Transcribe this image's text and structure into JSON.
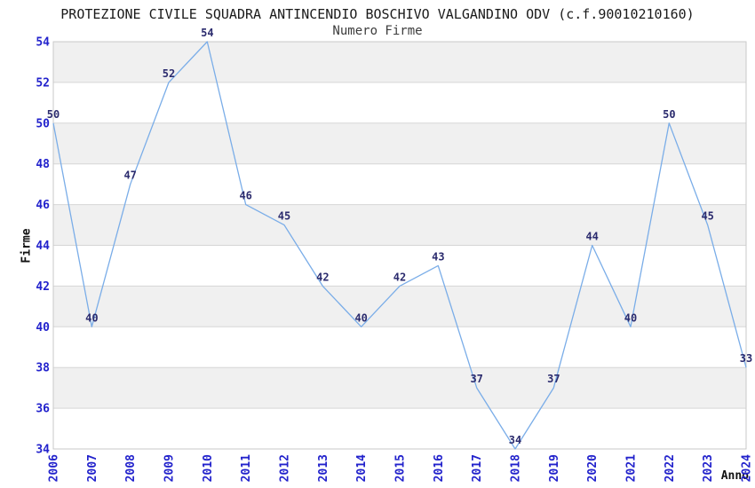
{
  "header": {
    "title": "PROTEZIONE CIVILE SQUADRA ANTINCENDIO BOSCHIVO VALGANDINO ODV (c.f.90010210160)",
    "subtitle": "Numero Firme"
  },
  "chart_data": {
    "type": "line",
    "title": "PROTEZIONE CIVILE SQUADRA ANTINCENDIO BOSCHIVO VALGANDINO ODV (c.f.90010210160)",
    "subtitle": "Numero Firme",
    "xlabel": "Anno",
    "ylabel": "Firme",
    "x": [
      2006,
      2007,
      2008,
      2009,
      2010,
      2011,
      2012,
      2013,
      2014,
      2015,
      2016,
      2017,
      2018,
      2019,
      2020,
      2021,
      2022,
      2023,
      2024
    ],
    "values": [
      50,
      40,
      47,
      52,
      54,
      46,
      45,
      42,
      40,
      42,
      43,
      37,
      34,
      37,
      44,
      40,
      50,
      45,
      33
    ],
    "ylim": [
      34,
      54
    ],
    "ytick_step": 2,
    "yticks": [
      34,
      36,
      38,
      40,
      42,
      44,
      46,
      48,
      50,
      52,
      54
    ],
    "grid": "horizontal gridlines with alternating shaded bands",
    "legend": "none",
    "value_labels_shown": true,
    "render_artifact": {
      "description": "2024 value (33) lies below y-axis minimum (34); drawn line is clipped at right edge",
      "last_segment_end_value": 38
    },
    "colors": {
      "line": "#7aade8",
      "tick_labels": "#2222cc",
      "value_labels": "#2b2b6e",
      "band_fill": "#f0f0f0",
      "gridline": "#d6d6d6",
      "plot_border": "#c9c9c9",
      "title_text": "#1a1a1a",
      "subtitle_text": "#3c3c3c",
      "axis_title_text": "#111111",
      "background": "#ffffff"
    }
  }
}
